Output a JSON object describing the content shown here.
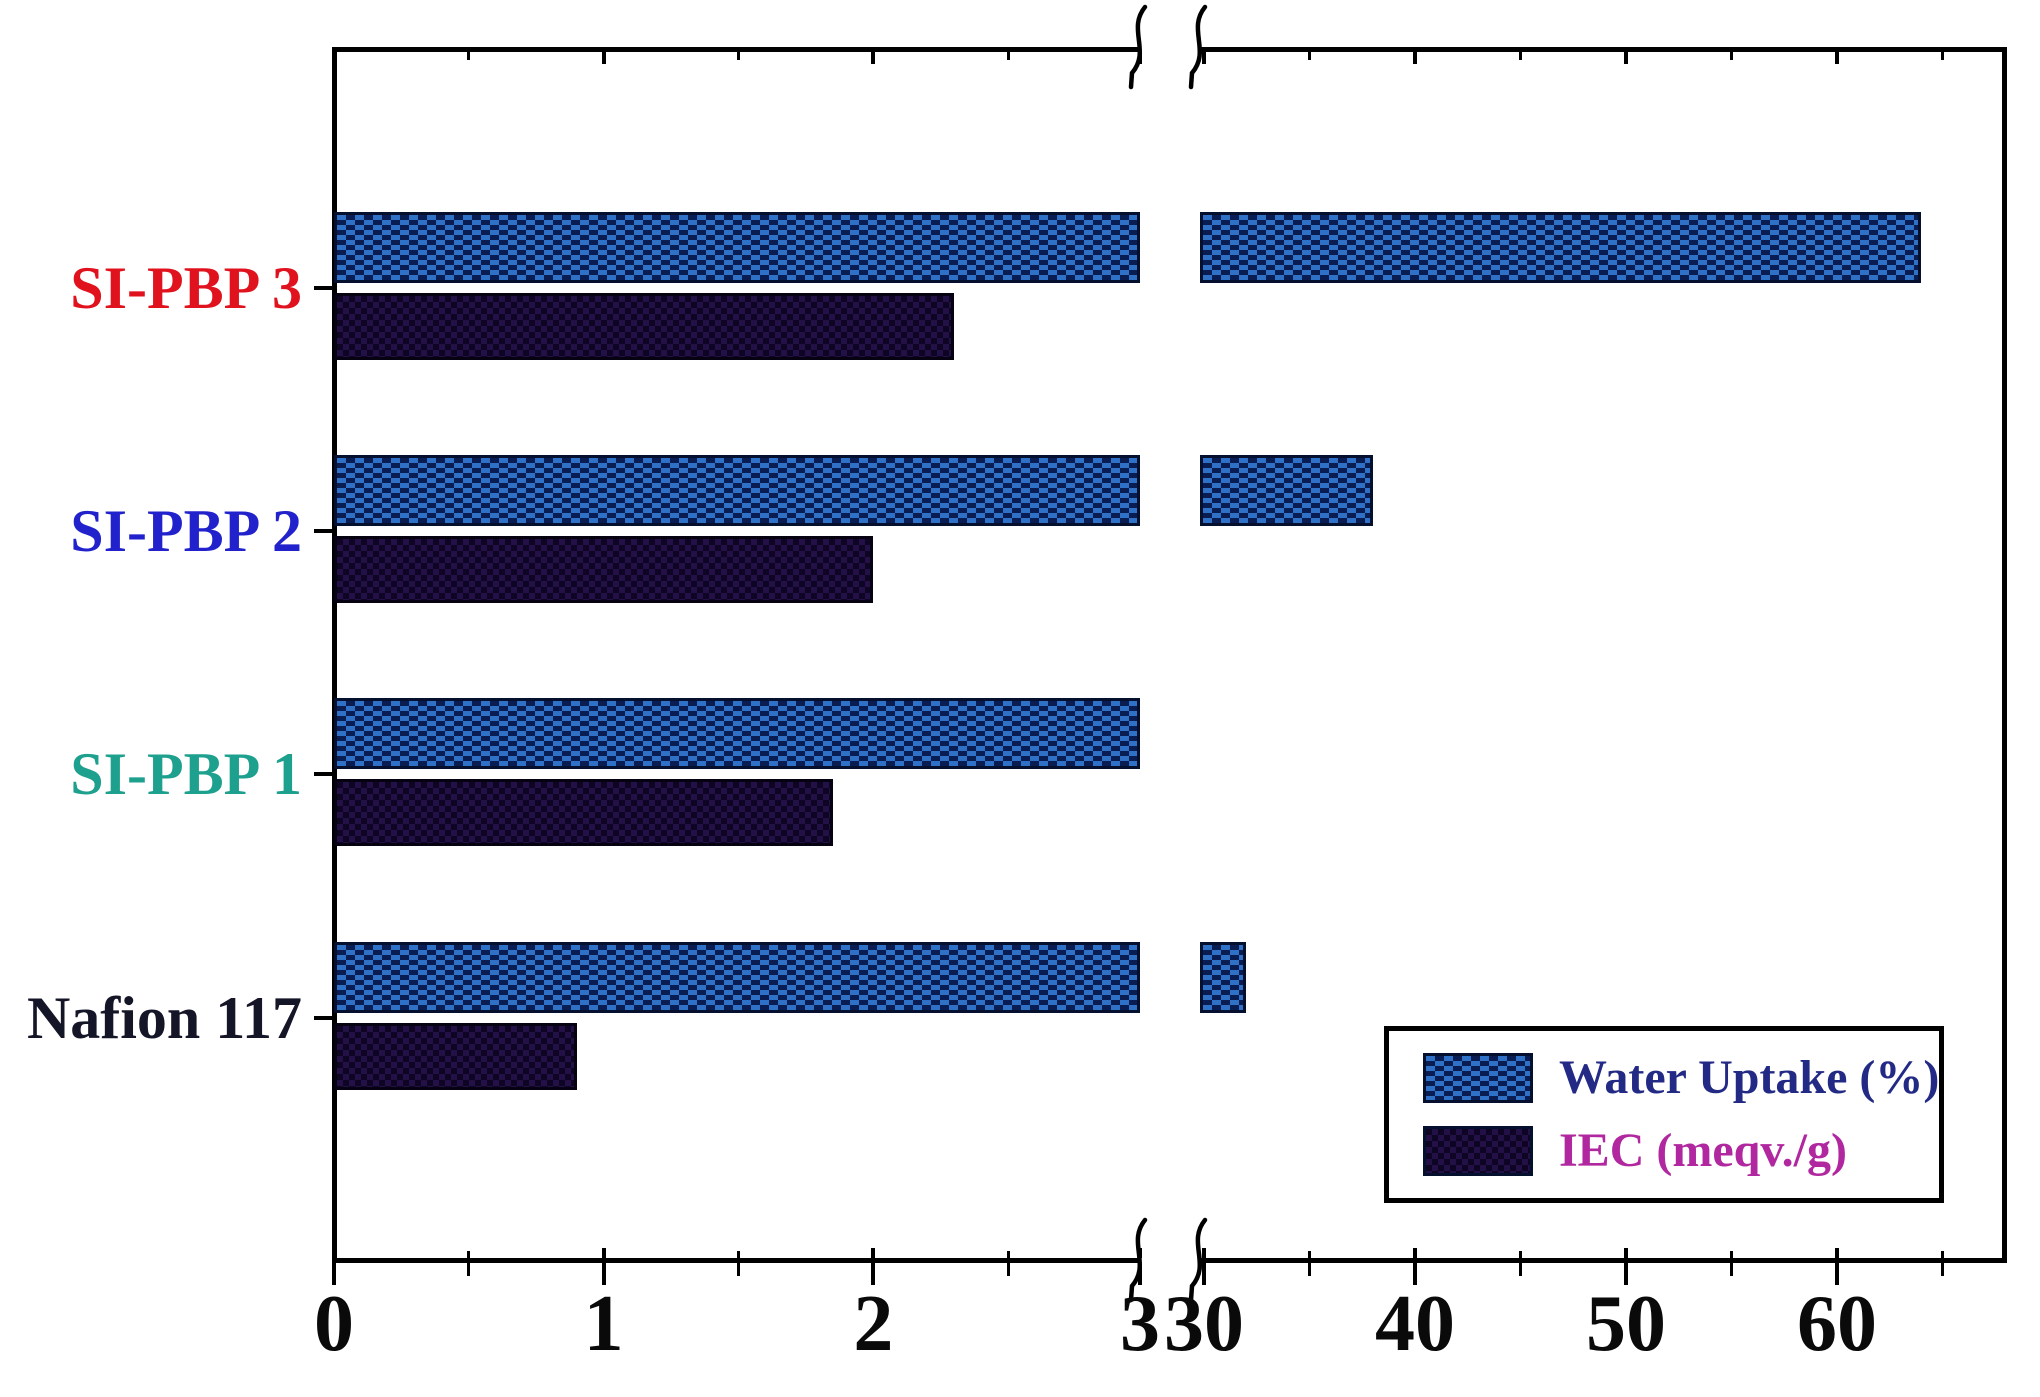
{
  "figure": {
    "background_color": "#ffffff",
    "frame_color": "#000000",
    "title": ""
  },
  "legend": {
    "position": "bottom-right",
    "border_color": "#000000",
    "items": [
      {
        "label": "Water Uptake (%)",
        "text_color": "#232a85",
        "swatch": "blue-checker-pattern"
      },
      {
        "label": "IEC (meqv./g)",
        "text_color": "#b0279f",
        "swatch": "dark-navy-checker-pattern"
      }
    ]
  },
  "axis": {
    "orientation": "horizontal-bars",
    "broken_x_axis": true,
    "break_between": [
      3,
      30
    ],
    "left_segment": {
      "range": [
        0,
        3
      ],
      "major_ticks": [
        0,
        1,
        2,
        3
      ],
      "minor_ticks": [
        0.5,
        1.5,
        2.5
      ]
    },
    "right_segment": {
      "range": [
        30,
        68
      ],
      "major_ticks": [
        30,
        40,
        50,
        60
      ],
      "minor_ticks": [
        35,
        45,
        55,
        65
      ]
    },
    "tick_label_color": "#0a0a0a"
  },
  "chart_data": {
    "type": "bar",
    "orientation": "horizontal",
    "title": "",
    "xlabel": "",
    "ylabel": "",
    "grid": false,
    "legend_position": "lower right",
    "categories": [
      "SI-PBP 3",
      "SI-PBP 2",
      "SI-PBP 1",
      "Nafion 117"
    ],
    "category_label_colors": [
      "#e0121e",
      "#2222cc",
      "#1ea08e",
      "#151528"
    ],
    "series": [
      {
        "name": "Water Uptake (%)",
        "values": [
          64,
          38,
          30,
          32
        ],
        "fill_color": "#2e71c6",
        "pattern_color": "#0a1d52",
        "note": "SI-PBP 1 bar ends at the axis break (~30); values on broken axis 0-3 / 30-68"
      },
      {
        "name": "IEC (meqv./g)",
        "values": [
          2.3,
          2.0,
          1.85,
          0.9
        ],
        "fill_color": "#0e0524",
        "pattern_color": "#221046"
      }
    ]
  }
}
